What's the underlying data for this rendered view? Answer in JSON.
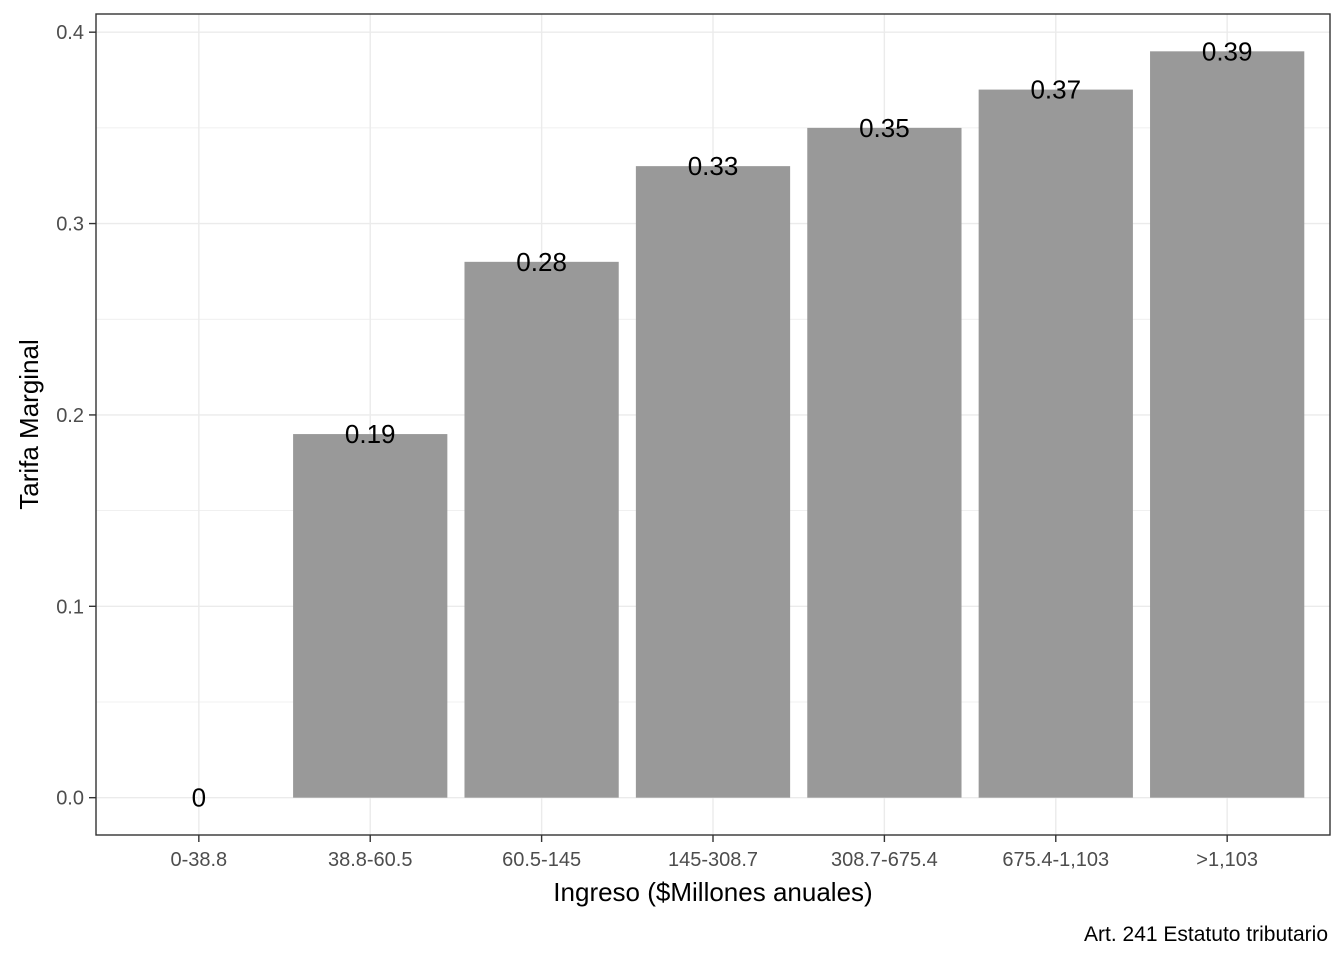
{
  "chart_data": {
    "type": "bar",
    "categories": [
      "0-38.8",
      "38.8-60.5",
      "60.5-145",
      "145-308.7",
      "308.7-675.4",
      "675.4-1,103",
      ">1,103"
    ],
    "values": [
      0,
      0.19,
      0.28,
      0.33,
      0.35,
      0.37,
      0.39
    ],
    "data_labels": [
      "0",
      "0.19",
      "0.28",
      "0.33",
      "0.35",
      "0.37",
      "0.39"
    ],
    "xlabel": "Ingreso ($Millones anuales)",
    "ylabel": "Tarifa Marginal",
    "ylim": [
      -0.0195,
      0.4095
    ],
    "yticks": [
      0.0,
      0.1,
      0.2,
      0.3,
      0.4
    ],
    "ytick_labels": [
      "0.0",
      "0.1",
      "0.2",
      "0.3",
      "0.4"
    ],
    "caption": "Art. 241 Estatuto tributario",
    "grid": true,
    "bar_color": "#999999",
    "grid_color": "#ebebeb",
    "panel_border_color": "#333333"
  }
}
